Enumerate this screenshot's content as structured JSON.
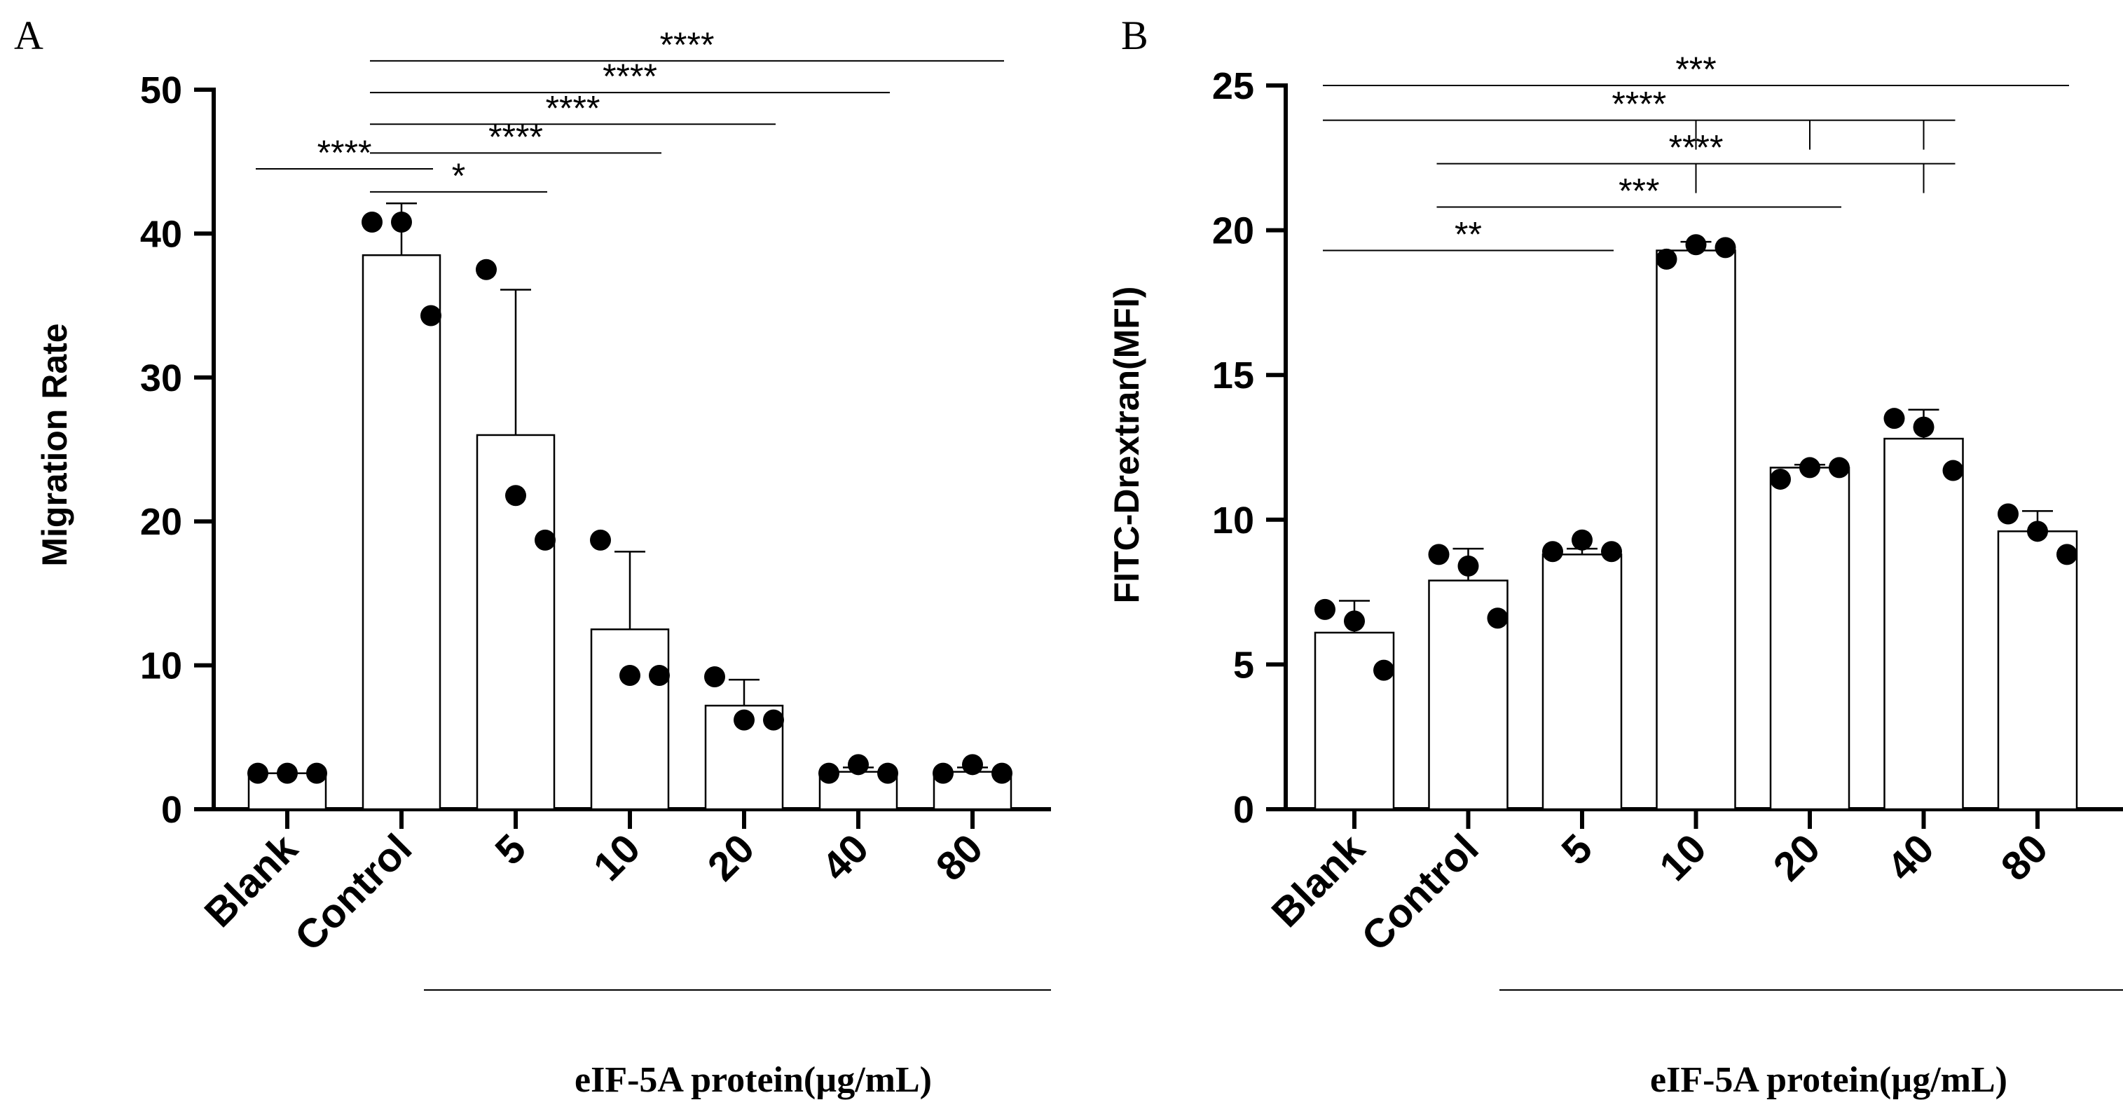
{
  "chart_data": [
    {
      "panel": "A",
      "type": "bar",
      "ylabel": "Migration Rate",
      "ylim": [
        0,
        50
      ],
      "yticks": [
        0,
        10,
        20,
        30,
        40,
        50
      ],
      "categories": [
        "Blank",
        "Control",
        "5",
        "10",
        "20",
        "40",
        "80"
      ],
      "values": [
        2.5,
        38.5,
        26,
        12.5,
        7.2,
        2.6,
        2.6
      ],
      "sd": [
        0,
        3.6,
        10.1,
        5.4,
        1.8,
        0.3,
        0.3
      ],
      "points": [
        [
          2.5,
          2.5,
          2.5
        ],
        [
          40.8,
          40.8,
          34.3
        ],
        [
          37.5,
          21.8,
          18.7
        ],
        [
          18.7,
          9.3,
          9.3
        ],
        [
          9.2,
          6.2,
          6.2
        ],
        [
          2.5,
          3.1,
          2.5
        ],
        [
          2.5,
          3.1,
          2.5
        ]
      ],
      "xgroup_label": "eIF-5A protein(µg/mL)",
      "significance": [
        {
          "label": "****",
          "from": 0,
          "to": 1,
          "y": 44.5
        },
        {
          "label": "*",
          "from": 1,
          "to": 2,
          "y": 42.9
        },
        {
          "label": "****",
          "from": 1,
          "to": 3,
          "y": 45.6
        },
        {
          "label": "****",
          "from": 1,
          "to": 4,
          "y": 47.6
        },
        {
          "label": "****",
          "from": 1,
          "to": 5,
          "y": 49.8
        },
        {
          "label": "****",
          "from": 1,
          "to": 6,
          "y": 52.0
        }
      ]
    },
    {
      "panel": "B",
      "type": "bar",
      "ylabel": "FITC-Drextran(MFI)",
      "ylim": [
        0,
        25
      ],
      "yticks": [
        0,
        5,
        10,
        15,
        20,
        25
      ],
      "categories": [
        "Blank",
        "Control",
        "5",
        "10",
        "20",
        "40",
        "80"
      ],
      "values": [
        6.1,
        7.9,
        8.8,
        19.3,
        11.8,
        12.8,
        9.6
      ],
      "sd": [
        1.1,
        1.1,
        0.2,
        0.3,
        0.1,
        1.0,
        0.7
      ],
      "points": [
        [
          6.9,
          6.5,
          4.8
        ],
        [
          8.8,
          8.4,
          6.6
        ],
        [
          8.9,
          9.3,
          8.9
        ],
        [
          19.0,
          19.5,
          19.4
        ],
        [
          11.4,
          11.8,
          11.8
        ],
        [
          13.5,
          13.2,
          11.7
        ],
        [
          10.2,
          9.6,
          8.8
        ]
      ],
      "xgroup_label": "eIF-5A protein(µg/mL)",
      "significance": [
        {
          "label": "**",
          "from": 0,
          "to": 2,
          "y": 19.3
        },
        {
          "label": "***",
          "from": 1,
          "to": 4,
          "y": 20.8
        },
        {
          "label": "****",
          "from": 1,
          "to": 5,
          "y": 22.3,
          "drops": [
            3,
            5
          ]
        },
        {
          "label": "****",
          "from": 0,
          "to": 5,
          "y": 23.8,
          "drops": [
            3,
            4,
            5
          ]
        },
        {
          "label": "***",
          "from": 0,
          "to": 6,
          "y": 25.0
        }
      ]
    }
  ]
}
